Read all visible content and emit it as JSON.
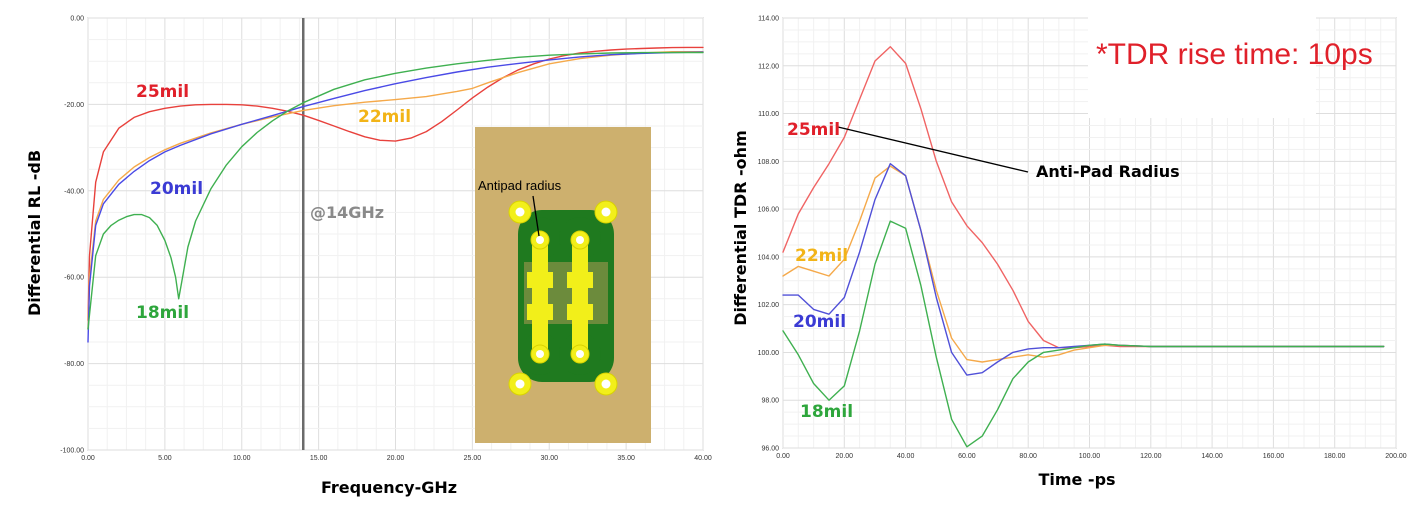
{
  "chart_data": [
    {
      "type": "line",
      "xlabel": "Frequency-GHz",
      "ylabel": "Differential RL -dB",
      "xlim": [
        0,
        40
      ],
      "ylim": [
        -100,
        0
      ],
      "x_ticks": [
        "0.00",
        "5.00",
        "10.00",
        "15.00",
        "20.00",
        "25.00",
        "30.00",
        "35.00",
        "40.00"
      ],
      "y_ticks": [
        "0.00",
        "-20.00",
        "-40.00",
        "-60.00",
        "-80.00",
        "-100.00"
      ],
      "grid": true,
      "marker_label": "@14GHz",
      "marker_x": 14,
      "inset_label": "Antipad radius",
      "series": [
        {
          "name": "25mil",
          "color": "#e8413c",
          "label_color": "#e0202a",
          "x": [
            0,
            0.1,
            0.5,
            1,
            2,
            3,
            4,
            5,
            6,
            7,
            8,
            9,
            10,
            11,
            12,
            13,
            14,
            15,
            16,
            17,
            18,
            19,
            20,
            21,
            22,
            23,
            24,
            25,
            26,
            27,
            28,
            29,
            30,
            31,
            32,
            33,
            34,
            35,
            36,
            37,
            38,
            39,
            40
          ],
          "y": [
            -70,
            -55,
            -38,
            -31,
            -25.5,
            -23,
            -21.7,
            -20.9,
            -20.4,
            -20.1,
            -20,
            -20,
            -20.1,
            -20.4,
            -20.9,
            -21.6,
            -22.5,
            -23.7,
            -25,
            -26.3,
            -27.5,
            -28.3,
            -28.5,
            -27.8,
            -26.3,
            -24,
            -21.3,
            -18.5,
            -16,
            -13.8,
            -12,
            -10.6,
            -9.5,
            -8.7,
            -8.1,
            -7.7,
            -7.4,
            -7.2,
            -7.05,
            -6.95,
            -6.85,
            -6.8,
            -6.8
          ]
        },
        {
          "name": "22mil",
          "color": "#f5a94a",
          "label_color": "#f2b418",
          "x": [
            0,
            0.1,
            0.5,
            1,
            2,
            3,
            4,
            5,
            6,
            8,
            10,
            12,
            14,
            16,
            18,
            20,
            22,
            24,
            25,
            26,
            28,
            30,
            32,
            34,
            36,
            38,
            40
          ],
          "y": [
            -72,
            -60,
            -47,
            -42,
            -37.5,
            -34.5,
            -32.3,
            -30.5,
            -29,
            -26.6,
            -24.6,
            -22.9,
            -21.4,
            -20.3,
            -19.5,
            -18.9,
            -18.2,
            -17,
            -16.3,
            -15,
            -12.6,
            -10.6,
            -9.4,
            -8.6,
            -8.1,
            -7.8,
            -7.8
          ]
        },
        {
          "name": "20mil",
          "color": "#4a4ae6",
          "label_color": "#3b3bd4",
          "x": [
            0,
            0.1,
            0.5,
            1,
            2,
            3,
            4,
            5,
            6,
            8,
            10,
            12,
            14,
            16,
            18,
            20,
            22,
            24,
            26,
            28,
            30,
            32,
            34,
            36,
            38,
            40
          ],
          "y": [
            -75,
            -62,
            -48,
            -43,
            -38.5,
            -35.5,
            -33,
            -31,
            -29.5,
            -26.8,
            -24.6,
            -22.6,
            -20.5,
            -18.6,
            -16.8,
            -15.2,
            -13.8,
            -12.5,
            -11.4,
            -10.5,
            -9.7,
            -9,
            -8.5,
            -8.2,
            -8,
            -7.9
          ]
        },
        {
          "name": "18mil",
          "color": "#3fb050",
          "label_color": "#2ea63c",
          "x": [
            0,
            0.5,
            1,
            1.5,
            2,
            2.5,
            3,
            3.5,
            4,
            4.5,
            5,
            5.4,
            5.7,
            5.9,
            6.1,
            6.5,
            7,
            8,
            9,
            10,
            11,
            12,
            13,
            14,
            16,
            18,
            20,
            22,
            24,
            26,
            28,
            30,
            32,
            34,
            36,
            38,
            40
          ],
          "y": [
            -72,
            -55,
            -50,
            -48,
            -46.8,
            -46,
            -45.5,
            -45.5,
            -46.2,
            -48,
            -51.5,
            -55.5,
            -60,
            -65,
            -61,
            -53,
            -47,
            -39.5,
            -34,
            -29.8,
            -26.5,
            -23.8,
            -21.5,
            -19.6,
            -16.5,
            -14.3,
            -12.8,
            -11.6,
            -10.6,
            -9.8,
            -9.1,
            -8.6,
            -8.3,
            -8.1,
            -8,
            -8,
            -8
          ]
        }
      ]
    },
    {
      "type": "line",
      "title": "*TDR rise time: 10ps",
      "xlabel": "Time -ps",
      "ylabel": "Differential TDR -ohm",
      "xlim": [
        0,
        200
      ],
      "ylim": [
        96,
        114
      ],
      "x_ticks": [
        "0.00",
        "20.00",
        "40.00",
        "60.00",
        "80.00",
        "100.00",
        "120.00",
        "140.00",
        "160.00",
        "180.00",
        "200.00"
      ],
      "y_ticks": [
        "114.00",
        "112.00",
        "110.00",
        "108.00",
        "106.00",
        "104.00",
        "102.00",
        "100.00",
        "98.00",
        "96.00"
      ],
      "grid": true,
      "annotation": "Anti-Pad Radius",
      "series": [
        {
          "name": "25mil",
          "color": "#f06464",
          "label_color": "#e0202a",
          "x": [
            0,
            5,
            10,
            15,
            20,
            25,
            30,
            35,
            40,
            45,
            50,
            55,
            60,
            65,
            70,
            75,
            80,
            85,
            90,
            95,
            100,
            105,
            110,
            120,
            140,
            160,
            180,
            196
          ],
          "y": [
            104.2,
            105.8,
            106.9,
            107.9,
            109,
            110.6,
            112.2,
            112.8,
            112.1,
            110.2,
            108,
            106.3,
            105.3,
            104.6,
            103.7,
            102.6,
            101.3,
            100.5,
            100.2,
            100.2,
            100.25,
            100.3,
            100.25,
            100.25,
            100.25,
            100.25,
            100.25,
            100.25
          ]
        },
        {
          "name": "22mil",
          "color": "#f5a94a",
          "label_color": "#f2b418",
          "x": [
            0,
            5,
            10,
            15,
            20,
            25,
            30,
            35,
            40,
            45,
            50,
            55,
            60,
            65,
            70,
            75,
            80,
            85,
            90,
            95,
            100,
            105,
            110,
            120,
            140,
            160,
            180,
            196
          ],
          "y": [
            103.2,
            103.6,
            103.4,
            103.2,
            103.9,
            105.5,
            107.3,
            107.8,
            107.4,
            105.1,
            102.6,
            100.6,
            99.7,
            99.6,
            99.7,
            99.8,
            99.9,
            99.8,
            99.9,
            100.1,
            100.2,
            100.3,
            100.3,
            100.25,
            100.25,
            100.25,
            100.25,
            100.25
          ]
        },
        {
          "name": "20mil",
          "color": "#5050d8",
          "label_color": "#3b3bd4",
          "x": [
            0,
            5,
            10,
            15,
            20,
            25,
            30,
            35,
            40,
            45,
            50,
            55,
            60,
            65,
            70,
            75,
            80,
            85,
            90,
            95,
            100,
            105,
            110,
            120,
            140,
            160,
            180,
            196
          ],
          "y": [
            102.4,
            102.4,
            101.8,
            101.6,
            102.3,
            104.2,
            106.4,
            107.9,
            107.4,
            105.1,
            102.3,
            100,
            99.05,
            99.15,
            99.6,
            100,
            100.15,
            100.2,
            100.2,
            100.25,
            100.3,
            100.35,
            100.3,
            100.25,
            100.25,
            100.25,
            100.25,
            100.25
          ]
        },
        {
          "name": "18mil",
          "color": "#3fb050",
          "label_color": "#2ea63c",
          "x": [
            0,
            5,
            10,
            15,
            20,
            25,
            30,
            35,
            40,
            45,
            50,
            55,
            60,
            65,
            70,
            75,
            80,
            85,
            90,
            95,
            100,
            105,
            110,
            120,
            140,
            160,
            180,
            196
          ],
          "y": [
            100.9,
            99.9,
            98.7,
            98,
            98.6,
            100.9,
            103.7,
            105.5,
            105.2,
            102.8,
            99.8,
            97.2,
            96.05,
            96.5,
            97.6,
            98.9,
            99.6,
            100,
            100.1,
            100.2,
            100.3,
            100.35,
            100.3,
            100.25,
            100.25,
            100.25,
            100.25,
            100.25
          ]
        }
      ]
    }
  ]
}
